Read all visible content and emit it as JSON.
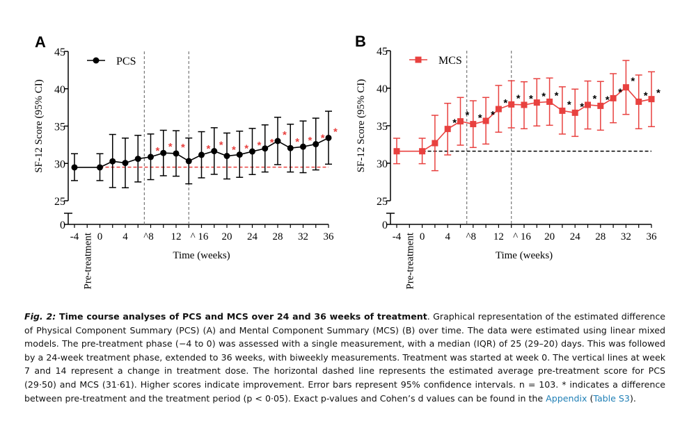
{
  "chart_data": [
    {
      "panel": "A",
      "type": "line",
      "series_name": "PCS",
      "color": "#000000",
      "marker": "circle",
      "asterisk_color": "#e8413f",
      "ylabel": "SF-12 Score (95% CI)",
      "xlabel": "Time (weeks)",
      "pre_label": "Pre-treatment",
      "ylim": [
        25,
        45
      ],
      "yticks": [
        25,
        30,
        35,
        40,
        45
      ],
      "y_break_tick": 0,
      "xlim": [
        -4,
        36
      ],
      "xticks": [
        "-4",
        "0",
        "4",
        "^8",
        "12",
        "^ 16",
        "20",
        "24",
        "28",
        "32",
        "36"
      ],
      "xtick_values": [
        -4,
        0,
        4,
        8,
        12,
        16,
        20,
        24,
        28,
        32,
        36
      ],
      "vlines": [
        7,
        14
      ],
      "reference_line": 29.5,
      "reference_color": "#e8413f",
      "x": [
        -4,
        0,
        2,
        4,
        6,
        8,
        10,
        12,
        14,
        16,
        18,
        20,
        22,
        24,
        26,
        28,
        30,
        32,
        34,
        36
      ],
      "y": [
        29.47,
        29.47,
        30.28,
        30.06,
        30.62,
        30.87,
        31.4,
        31.33,
        30.31,
        31.15,
        31.65,
        31.0,
        31.18,
        31.6,
        32.0,
        33.0,
        32.05,
        32.24,
        32.58,
        33.42
      ],
      "ci_upper": [
        31.3,
        31.3,
        33.88,
        33.39,
        33.76,
        33.94,
        34.44,
        34.38,
        33.4,
        34.25,
        34.78,
        34.07,
        34.32,
        34.69,
        35.16,
        36.18,
        35.25,
        35.68,
        36.06,
        36.99
      ],
      "ci_lower": [
        27.7,
        27.7,
        26.77,
        26.74,
        27.52,
        27.83,
        28.35,
        28.29,
        27.27,
        28.07,
        28.54,
        27.92,
        28.14,
        28.51,
        28.85,
        29.84,
        28.85,
        28.76,
        29.13,
        29.9
      ],
      "significant": [
        false,
        false,
        false,
        false,
        false,
        true,
        true,
        true,
        false,
        true,
        true,
        true,
        true,
        true,
        true,
        true,
        true,
        true,
        true,
        true
      ],
      "asterisk": "*"
    },
    {
      "panel": "B",
      "type": "line",
      "series_name": "MCS",
      "color": "#e8413f",
      "marker": "square",
      "asterisk_color": "#000000",
      "ylabel": "SF-12 Score (95% CI)",
      "xlabel": "Time (weeks)",
      "pre_label": "Pre-treatment",
      "ylim": [
        25,
        45
      ],
      "yticks": [
        25,
        30,
        35,
        40,
        45
      ],
      "y_break_tick": 0,
      "xlim": [
        -4,
        36
      ],
      "xticks": [
        "-4",
        "0",
        "4",
        "^8",
        "12",
        "^ 16",
        "20",
        "24",
        "28",
        "32",
        "36"
      ],
      "xtick_values": [
        -4,
        0,
        4,
        8,
        12,
        16,
        20,
        24,
        28,
        32,
        36
      ],
      "vlines": [
        7,
        14
      ],
      "reference_line": 31.61,
      "reference_color": "#000000",
      "x": [
        -4,
        0,
        2,
        4,
        6,
        8,
        10,
        12,
        14,
        16,
        18,
        20,
        22,
        24,
        26,
        28,
        30,
        32,
        34,
        36
      ],
      "y": [
        31.6,
        31.6,
        32.68,
        34.57,
        35.59,
        35.22,
        35.65,
        37.22,
        37.84,
        37.78,
        38.09,
        38.2,
        37.0,
        36.73,
        37.78,
        37.65,
        38.67,
        40.12,
        38.2,
        38.55
      ],
      "ci_upper": [
        33.33,
        33.33,
        36.39,
        37.99,
        38.77,
        38.33,
        38.77,
        40.37,
        40.99,
        40.86,
        41.27,
        41.36,
        40.19,
        39.88,
        40.96,
        40.9,
        41.94,
        43.7,
        41.76,
        42.19
      ],
      "ci_lower": [
        29.94,
        29.94,
        29.01,
        31.11,
        32.41,
        32.1,
        32.56,
        34.14,
        34.72,
        34.6,
        34.97,
        35.06,
        33.89,
        33.58,
        34.57,
        34.41,
        35.4,
        36.51,
        34.6,
        34.88
      ],
      "significant": [
        false,
        false,
        false,
        true,
        true,
        true,
        true,
        true,
        true,
        true,
        true,
        true,
        true,
        true,
        true,
        true,
        true,
        true,
        true,
        true
      ],
      "asterisk": "*"
    }
  ],
  "caption": {
    "fig_label": "Fig. 2:",
    "title": " Time course analyses of PCS and MCS over 24 and 36 weeks of treatment",
    "body": ". Graphical representation of the estimated difference of Physical Component Summary (PCS) (A) and Mental Component Summary (MCS) (B) over time. The data were estimated using linear mixed models. The pre-treatment phase (−4 to 0) was assessed with a single measurement, with a median (IQR) of 25 (29–20) days. This was followed by a 24-week treatment phase, extended to 36 weeks, with biweekly measurements. Treatment was started at week 0. The vertical lines at week 7 and 14 represent a change in treatment dose. The horizontal dashed line represents the estimated average pre-treatment score for PCS (29·50) and MCS (31·61). Higher scores indicate improvement. Error bars represent 95% confidence intervals. n = 103. * indicates a difference between pre-treatment and the treatment period (p < 0·05). Exact p-values and Cohen’s d values can be found in the ",
    "link_appendix": "Appendix",
    "paren_open": " (",
    "link_table": "Table S3",
    "paren_close": ")."
  }
}
